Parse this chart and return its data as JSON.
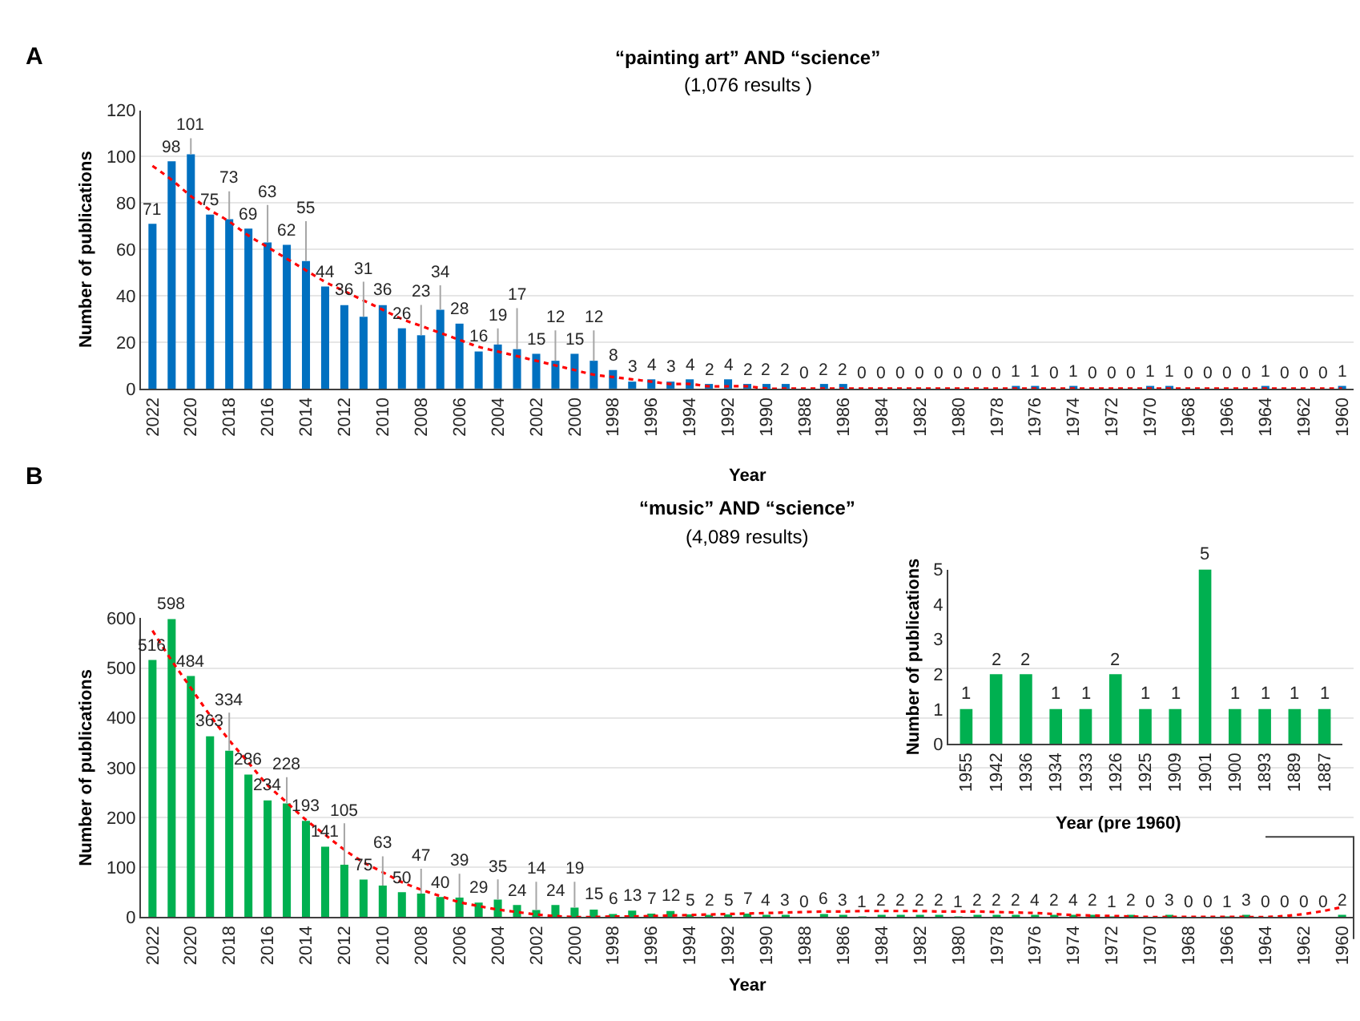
{
  "chart_data": [
    {
      "type": "bar",
      "title": "“painting art” AND “science”",
      "subtitle": "(1,076 results )",
      "xlabel": "Year",
      "ylabel": "Number of publications",
      "annotations": [
        "A"
      ],
      "categories": [
        "2022",
        null,
        "2020",
        null,
        "2018",
        null,
        "2016",
        null,
        "2014",
        null,
        "2012",
        null,
        "2010",
        null,
        "2008",
        null,
        "2006",
        null,
        "2004",
        null,
        "2002",
        null,
        "2000",
        null,
        "1998",
        null,
        "1996",
        null,
        "1994",
        null,
        "1992",
        null,
        "1990",
        null,
        "1988",
        null,
        "1986",
        null,
        "1984",
        null,
        "1982",
        null,
        "1980",
        null,
        "1978",
        null,
        "1976",
        null,
        "1974",
        null,
        "1972",
        null,
        "1970",
        null,
        "1968",
        null,
        "1966",
        null,
        "1964",
        null,
        "1962",
        null,
        "1960"
      ],
      "series": [
        {
          "color": "#0070c0",
          "values": [
            71,
            98,
            101,
            75,
            73,
            69,
            63,
            62,
            55,
            44,
            36,
            31,
            36,
            26,
            23,
            34,
            28,
            16,
            19,
            17,
            15,
            12,
            15,
            12,
            8,
            3,
            4,
            3,
            4,
            2,
            4,
            2,
            2,
            2,
            0,
            2,
            2,
            0,
            0,
            0,
            0,
            0,
            0,
            0,
            0,
            1,
            1,
            0,
            1,
            0,
            0,
            0,
            1,
            1,
            0,
            0,
            0,
            0,
            1,
            0,
            0,
            0,
            1
          ]
        },
        {
          "type": "line",
          "color": "#ff0000",
          "line_style": "dotted",
          "values": [
            96,
            90,
            83,
            77,
            72,
            66,
            61,
            56,
            51,
            46,
            42,
            38,
            34,
            30,
            27,
            24,
            21,
            18,
            16,
            14,
            12,
            10,
            8,
            6,
            5,
            4,
            3,
            2,
            2,
            1,
            1,
            1,
            0,
            0,
            0,
            0,
            0,
            0,
            0,
            0,
            0,
            0,
            0,
            0,
            0,
            0,
            0,
            0,
            0,
            0,
            0,
            0,
            0,
            0,
            0,
            0,
            0,
            0,
            0,
            0,
            0,
            0,
            0
          ],
          "value_labels": [
            null,
            null,
            null,
            null,
            null,
            null,
            null,
            null,
            null,
            null,
            null,
            null,
            null,
            null,
            null,
            null,
            null,
            null,
            null,
            null,
            null,
            null,
            null,
            null,
            null,
            null,
            null,
            null,
            null,
            null,
            null,
            null,
            null,
            null,
            null,
            null,
            null,
            null,
            null,
            null,
            null,
            null,
            null,
            null,
            null,
            null,
            null,
            null,
            null,
            null,
            null,
            null,
            null,
            null,
            null,
            null,
            null,
            null,
            null,
            null,
            null,
            null,
            null
          ]
        }
      ],
      "ylim": [
        0,
        120
      ],
      "yticks": [
        0,
        20,
        40,
        60,
        80,
        100,
        120
      ],
      "grid": "y",
      "data_labels": true
    },
    {
      "type": "bar",
      "title": "“music” AND “science”",
      "subtitle": "(4,089 results)",
      "xlabel": "Year",
      "ylabel": "Number of publications",
      "annotations": [
        "B"
      ],
      "categories": [
        "2022",
        null,
        "2020",
        null,
        "2018",
        null,
        "2016",
        null,
        "2014",
        null,
        "2012",
        null,
        "2010",
        null,
        "2008",
        null,
        "2006",
        null,
        "2004",
        null,
        "2002",
        null,
        "2000",
        null,
        "1998",
        null,
        "1996",
        null,
        "1994",
        null,
        "1992",
        null,
        "1990",
        null,
        "1988",
        null,
        "1986",
        null,
        "1984",
        null,
        "1982",
        null,
        "1980",
        null,
        "1978",
        null,
        "1976",
        null,
        "1974",
        null,
        "1972",
        null,
        "1970",
        null,
        "1968",
        null,
        "1966",
        null,
        "1964",
        null,
        "1962",
        null,
        "1960"
      ],
      "series": [
        {
          "color": "#00b050",
          "values": [
            516,
            598,
            484,
            363,
            334,
            286,
            234,
            228,
            193,
            141,
            105,
            75,
            63,
            50,
            47,
            40,
            39,
            29,
            35,
            24,
            14,
            24,
            19,
            15,
            6,
            13,
            7,
            12,
            5,
            2,
            5,
            7,
            4,
            3,
            0,
            6,
            3,
            1,
            2,
            2,
            2,
            2,
            1,
            2,
            2,
            2,
            4,
            2,
            4,
            2,
            1,
            2,
            0,
            3,
            0,
            0,
            1,
            3,
            0,
            0,
            0,
            0,
            2
          ]
        },
        {
          "type": "line",
          "color": "#ff0000",
          "line_style": "dotted",
          "values": [
            575,
            515,
            460,
            405,
            355,
            310,
            265,
            230,
            195,
            165,
            135,
            110,
            90,
            70,
            55,
            42,
            30,
            22,
            15,
            10,
            5,
            2,
            0,
            0,
            1,
            1,
            2,
            3,
            4,
            5,
            6,
            7,
            8,
            9,
            10,
            11,
            11,
            12,
            12,
            12,
            12,
            11,
            11,
            11,
            10,
            9,
            8,
            6,
            4,
            3,
            2,
            1,
            0,
            0,
            0,
            0,
            0,
            0,
            0,
            2,
            6,
            12,
            20
          ],
          "value_labels": [
            null,
            null,
            null,
            null,
            null,
            null,
            null,
            null,
            null,
            null,
            null,
            null,
            null,
            null,
            null,
            null,
            null,
            null,
            null,
            null,
            null,
            null,
            null,
            null,
            null,
            null,
            null,
            null,
            null,
            null,
            null,
            null,
            null,
            null,
            null,
            null,
            null,
            null,
            null,
            null,
            null,
            null,
            null,
            null,
            null,
            null,
            null,
            null,
            null,
            null,
            null,
            null,
            null,
            null,
            null,
            null,
            null,
            null,
            null,
            null,
            null,
            null,
            null
          ]
        }
      ],
      "ylim": [
        0,
        600
      ],
      "yticks": [
        0,
        100,
        200,
        300,
        400,
        500,
        600
      ],
      "grid": "y",
      "data_labels": true
    },
    {
      "type": "bar",
      "xlabel": "Year (pre 1960)",
      "ylabel": "Number of publications",
      "categories": [
        "1955",
        "1942",
        "1936",
        "1934",
        "1933",
        "1926",
        "1925",
        "1909",
        "1901",
        "1900",
        "1893",
        "1889",
        "1887"
      ],
      "series": [
        {
          "color": "#00b050",
          "values": [
            1,
            2,
            2,
            1,
            1,
            2,
            1,
            1,
            5,
            1,
            1,
            1,
            1
          ]
        }
      ],
      "ylim": [
        0,
        5
      ],
      "yticks": [
        0,
        1,
        2,
        3,
        4,
        5
      ],
      "data_labels": true
    }
  ]
}
